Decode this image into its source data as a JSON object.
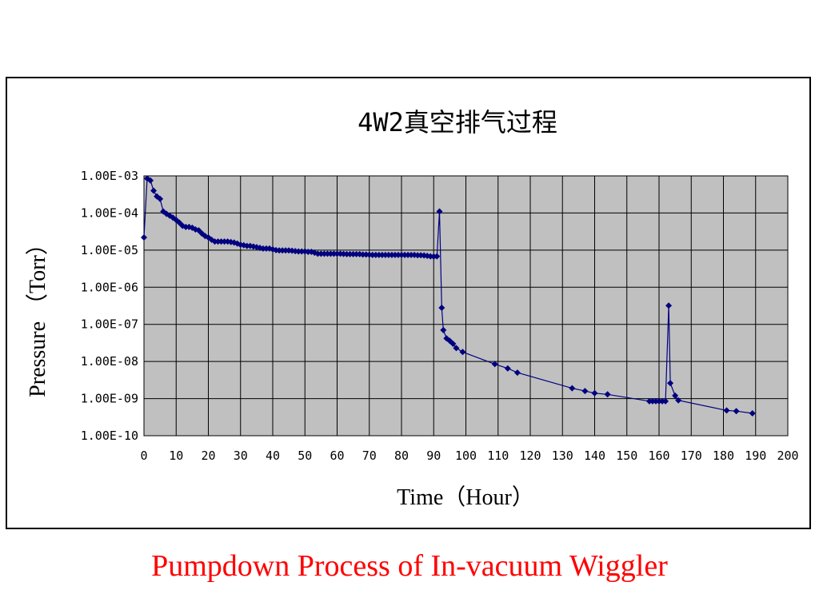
{
  "caption": "Pumpdown Process of  In-vacuum Wiggler",
  "colors": {
    "series": "#000080",
    "plot_bg": "#c0c0c0",
    "caption": "#ff0000",
    "grid": "#000000"
  },
  "chart_data": {
    "type": "line",
    "title": "4W2真空排气过程",
    "xlabel": "Time（Hour）",
    "ylabel": "Pressure （Torr）",
    "xlim": [
      0,
      200
    ],
    "ylim": [
      1e-10,
      0.001
    ],
    "yscale": "log",
    "grid": true,
    "x_ticks": [
      "0",
      "10",
      "20",
      "30",
      "40",
      "50",
      "60",
      "70",
      "80",
      "90",
      "100",
      "110",
      "120",
      "130",
      "140",
      "150",
      "160",
      "170",
      "180",
      "190",
      "200"
    ],
    "y_ticks": [
      "1.00E-03",
      "1.00E-04",
      "1.00E-05",
      "1.00E-06",
      "1.00E-07",
      "1.00E-08",
      "1.00E-09",
      "1.00E-10"
    ],
    "series": [
      {
        "marker": "diamond",
        "points": [
          [
            0,
            2.2e-05
          ],
          [
            1,
            0.00085
          ],
          [
            2,
            0.00075
          ],
          [
            3,
            0.0004
          ],
          [
            4,
            0.00028
          ],
          [
            5,
            0.00024
          ],
          [
            6,
            0.00011
          ],
          [
            7,
            9.5e-05
          ],
          [
            8,
            8.5e-05
          ],
          [
            9,
            7.5e-05
          ],
          [
            10,
            6.5e-05
          ],
          [
            11,
            5.5e-05
          ],
          [
            12,
            4.5e-05
          ],
          [
            13,
            4.2e-05
          ],
          [
            14,
            4.2e-05
          ],
          [
            15,
            4e-05
          ],
          [
            16,
            3.6e-05
          ],
          [
            17,
            3.4e-05
          ],
          [
            18,
            2.8e-05
          ],
          [
            19,
            2.4e-05
          ],
          [
            20,
            2.2e-05
          ],
          [
            21,
            1.9e-05
          ],
          [
            22,
            1.7e-05
          ],
          [
            23,
            1.7e-05
          ],
          [
            24,
            1.7e-05
          ],
          [
            25,
            1.7e-05
          ],
          [
            26,
            1.7e-05
          ],
          [
            27,
            1.65e-05
          ],
          [
            28,
            1.6e-05
          ],
          [
            29,
            1.5e-05
          ],
          [
            30,
            1.4e-05
          ],
          [
            31,
            1.35e-05
          ],
          [
            32,
            1.3e-05
          ],
          [
            33,
            1.3e-05
          ],
          [
            34,
            1.25e-05
          ],
          [
            35,
            1.2e-05
          ],
          [
            36,
            1.15e-05
          ],
          [
            37,
            1.1e-05
          ],
          [
            38,
            1.1e-05
          ],
          [
            39,
            1.1e-05
          ],
          [
            40,
            1.05e-05
          ],
          [
            41,
            1e-05
          ],
          [
            42,
            9.8e-06
          ],
          [
            43,
            9.8e-06
          ],
          [
            44,
            9.8e-06
          ],
          [
            45,
            9.8e-06
          ],
          [
            46,
            9.6e-06
          ],
          [
            47,
            9.4e-06
          ],
          [
            48,
            9.2e-06
          ],
          [
            49,
            9.2e-06
          ],
          [
            50,
            9.2e-06
          ],
          [
            51,
            9e-06
          ],
          [
            52,
            9e-06
          ],
          [
            53,
            8.5e-06
          ],
          [
            54,
            8e-06
          ],
          [
            55,
            8e-06
          ],
          [
            56,
            8e-06
          ],
          [
            57,
            8e-06
          ],
          [
            58,
            8e-06
          ],
          [
            59,
            8e-06
          ],
          [
            60,
            8e-06
          ],
          [
            61,
            8e-06
          ],
          [
            62,
            7.9e-06
          ],
          [
            63,
            7.8e-06
          ],
          [
            64,
            7.8e-06
          ],
          [
            65,
            7.8e-06
          ],
          [
            66,
            7.8e-06
          ],
          [
            67,
            7.8e-06
          ],
          [
            68,
            7.6e-06
          ],
          [
            69,
            7.6e-06
          ],
          [
            70,
            7.5e-06
          ],
          [
            71,
            7.4e-06
          ],
          [
            72,
            7.4e-06
          ],
          [
            73,
            7.4e-06
          ],
          [
            74,
            7.4e-06
          ],
          [
            75,
            7.4e-06
          ],
          [
            76,
            7.4e-06
          ],
          [
            77,
            7.4e-06
          ],
          [
            78,
            7.4e-06
          ],
          [
            79,
            7.4e-06
          ],
          [
            80,
            7.4e-06
          ],
          [
            81,
            7.4e-06
          ],
          [
            82,
            7.4e-06
          ],
          [
            83,
            7.4e-06
          ],
          [
            84,
            7.4e-06
          ],
          [
            85,
            7.3e-06
          ],
          [
            86,
            7.3e-06
          ],
          [
            87,
            7.2e-06
          ],
          [
            88,
            7e-06
          ],
          [
            89,
            6.8e-06
          ],
          [
            90,
            6.7e-06
          ],
          [
            91,
            6.8e-06
          ],
          [
            91.8,
            0.00011
          ],
          [
            92.5,
            2.8e-07
          ],
          [
            93,
            7e-08
          ],
          [
            94,
            4.2e-08
          ],
          [
            95,
            3.6e-08
          ],
          [
            96,
            3e-08
          ],
          [
            97,
            2.3e-08
          ],
          [
            99,
            1.8e-08
          ],
          [
            109,
            8.5e-09
          ],
          [
            113,
            6.5e-09
          ],
          [
            116,
            5e-09
          ],
          [
            133,
            1.9e-09
          ],
          [
            137,
            1.6e-09
          ],
          [
            140,
            1.4e-09
          ],
          [
            144,
            1.3e-09
          ],
          [
            157,
            8.5e-10
          ],
          [
            158,
            8.5e-10
          ],
          [
            159,
            8.5e-10
          ],
          [
            160,
            8.5e-10
          ],
          [
            161,
            8.5e-10
          ],
          [
            162,
            8.5e-10
          ],
          [
            163,
            3.2e-07
          ],
          [
            163.5,
            2.6e-09
          ],
          [
            165,
            1.2e-09
          ],
          [
            166,
            9e-10
          ],
          [
            181,
            4.8e-10
          ],
          [
            184,
            4.6e-10
          ],
          [
            189,
            4e-10
          ]
        ]
      }
    ]
  }
}
